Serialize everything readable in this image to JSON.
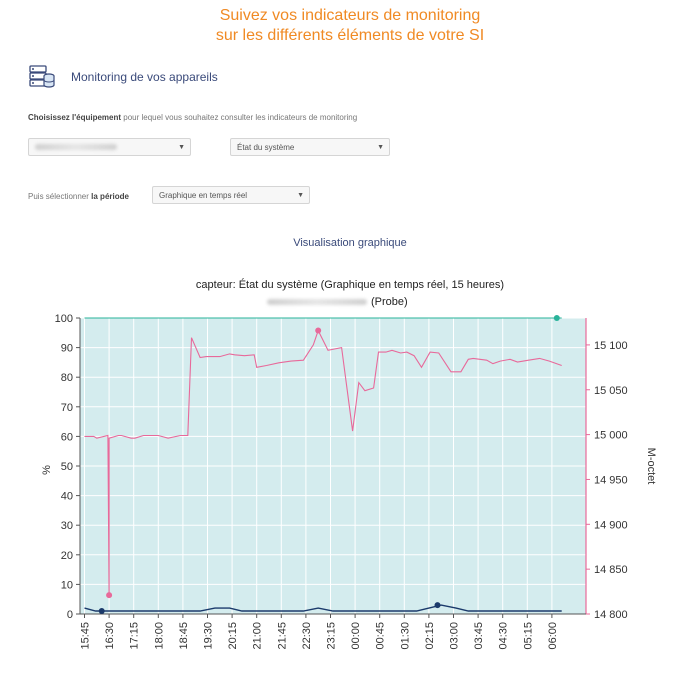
{
  "headline": {
    "line1": "Suivez vos indicateurs de monitoring",
    "line2": "sur les différents éléments de votre SI"
  },
  "section": {
    "title": "Monitoring de vos appareils",
    "icon": "server-database-icon"
  },
  "selection": {
    "choose_bold": "Choisissez l'équipement",
    "choose_rest": " pour lequel vous souhaitez consulter les indicateurs de monitoring",
    "equipment_value": "",
    "indicator_value": "État du système",
    "period_prefix": "Puis sélectionner ",
    "period_bold": "la période",
    "period_value": "Graphique en temps réel"
  },
  "visualization": {
    "title": "Visualisation graphique"
  },
  "chart_data": {
    "type": "line",
    "title": "capteur: État du système (Graphique en temps réel, 15 heures)",
    "subtitle": "(Probe)",
    "ylabel": "%",
    "y2label": "M-octet",
    "ylim": [
      0,
      100
    ],
    "y2lim": [
      14800,
      15130
    ],
    "yticks": [
      "0",
      "10",
      "20",
      "30",
      "40",
      "50",
      "60",
      "70",
      "80",
      "90",
      "100"
    ],
    "y2ticks": [
      "14 800",
      "14 850",
      "14 900",
      "14 950",
      "15 000",
      "15 050",
      "15 100"
    ],
    "y2tick_values": [
      14800,
      14850,
      14900,
      14950,
      15000,
      15050,
      15100
    ],
    "xticks": [
      "15:45",
      "16:30",
      "17:15",
      "18:00",
      "18:45",
      "19:30",
      "20:15",
      "21:00",
      "21:45",
      "22:30",
      "23:15",
      "00:00",
      "00:45",
      "01:30",
      "02:15",
      "03:00",
      "03:45",
      "04:30",
      "05:15",
      "06:00"
    ],
    "grid": true,
    "background": "#d4ecee",
    "series": [
      {
        "axis": "right",
        "color": "#e8699a",
        "x": [
          0,
          0.38,
          0.5,
          0.95,
          1,
          1.38,
          1.5,
          1.9,
          2.05,
          2.4,
          2.6,
          3,
          3.4,
          3.9,
          4.2,
          4.35,
          4.7,
          4.95,
          5.5,
          5.9,
          6.1,
          6.5,
          6.9,
          7,
          7.4,
          7.9,
          8.4,
          8.9,
          9.3,
          9.5,
          9.9,
          10.45,
          10.9,
          11.15,
          11.4,
          11.75,
          11.95,
          12.25,
          12.5,
          12.85,
          13.1,
          13.4,
          13.7,
          14.05,
          14.4,
          14.9,
          15.3,
          15.6,
          15.8,
          16.35,
          16.6,
          16.9,
          17.3,
          17.6,
          18.05,
          18.5,
          18.9,
          19.4
        ],
        "y": [
          14998,
          14998,
          14996,
          14999,
          14996,
          14999,
          14999,
          14996,
          14996,
          14999,
          14999,
          14999,
          14996,
          14999,
          14999,
          15108,
          15086,
          15087,
          15087,
          15090,
          15089,
          15088,
          15089,
          15075,
          15077,
          15080,
          15082,
          15083,
          15100,
          15116,
          15094,
          15097,
          15004,
          15058,
          15049,
          15052,
          15092,
          15092,
          15094,
          15091,
          15092,
          15088,
          15075,
          15092,
          15091,
          15070,
          15070,
          15084,
          15085,
          15083,
          15079,
          15082,
          15084,
          15081,
          15083,
          15085,
          15082,
          15077
        ],
        "marker": {
          "x": 1,
          "y": 14821
        }
      },
      {
        "axis": "left",
        "color": "#1b3a6b",
        "x": [
          0,
          0.45,
          0.9,
          1.25,
          1.8,
          2.4,
          3,
          3.6,
          4.2,
          4.7,
          5.3,
          5.9,
          6.4,
          6.9,
          7.4,
          7.9,
          8.4,
          8.9,
          9.5,
          10.1,
          10.7,
          11.3,
          11.9,
          12.5,
          13,
          13.5,
          14,
          14.5,
          15.1,
          15.6,
          16.1,
          16.6,
          17.1,
          17.6,
          18.2,
          18.8,
          19.4
        ],
        "y": [
          2,
          1,
          1,
          1,
          1,
          1,
          1,
          1,
          1,
          1,
          2,
          2,
          1,
          1,
          1,
          1,
          1,
          1,
          2,
          1,
          1,
          1,
          1,
          1,
          1,
          1,
          2,
          3,
          2,
          1,
          1,
          1,
          1,
          1,
          1,
          1,
          1
        ],
        "markers": [
          {
            "x": 0.7,
            "y": 1
          },
          {
            "x": 14.35,
            "y": 3
          }
        ]
      },
      {
        "axis": "left",
        "color": "#29b39a",
        "x": [
          0,
          19.4
        ],
        "y": [
          100,
          100
        ],
        "markers": [
          {
            "x": 19.2,
            "y": 100
          }
        ]
      }
    ]
  }
}
